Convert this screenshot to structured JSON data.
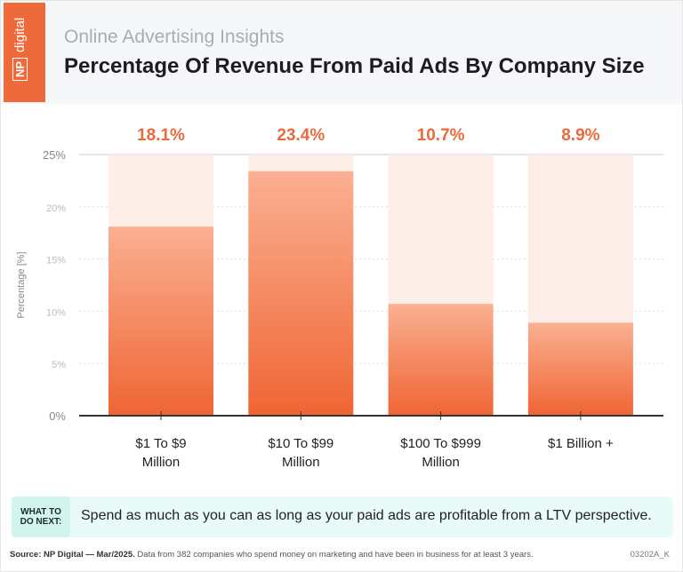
{
  "header": {
    "logo": "NP digital",
    "subtitle": "Online Advertising Insights",
    "title": "Percentage Of Revenue From Paid Ads By Company Size"
  },
  "chart_data": {
    "type": "bar",
    "categories": [
      [
        "$1 To $9",
        "Million"
      ],
      [
        "$10 To $99",
        "Million"
      ],
      [
        "$100 To $999",
        "Million"
      ],
      [
        "$1 Billion +"
      ]
    ],
    "values": [
      18.1,
      23.4,
      10.7,
      8.9
    ],
    "data_labels": [
      "18.1%",
      "23.4%",
      "10.7%",
      "8.9%"
    ],
    "ylabel": "Percentage [%]",
    "ylim": [
      0,
      25
    ],
    "yticks": [
      0,
      5,
      10,
      15,
      20,
      25
    ],
    "ytick_labels": [
      "0%",
      "5%",
      "10%",
      "15%",
      "20%",
      "25%"
    ],
    "grid": true,
    "colors": {
      "bar_top": "#fbb092",
      "bar_bottom": "#ef6534",
      "track": "#fdeee8",
      "label": "#ea6a3c"
    }
  },
  "next": {
    "label": "WHAT TO DO NEXT:",
    "text": "Spend as much as you can as long as your paid ads are profitable from a LTV perspective."
  },
  "footer": {
    "source_bold": "Source: NP Digital — Mar/2025.",
    "source": " Data from 382 companies who spend money on marketing and have been in business for at least 3 years.",
    "code": "03202A_K"
  }
}
